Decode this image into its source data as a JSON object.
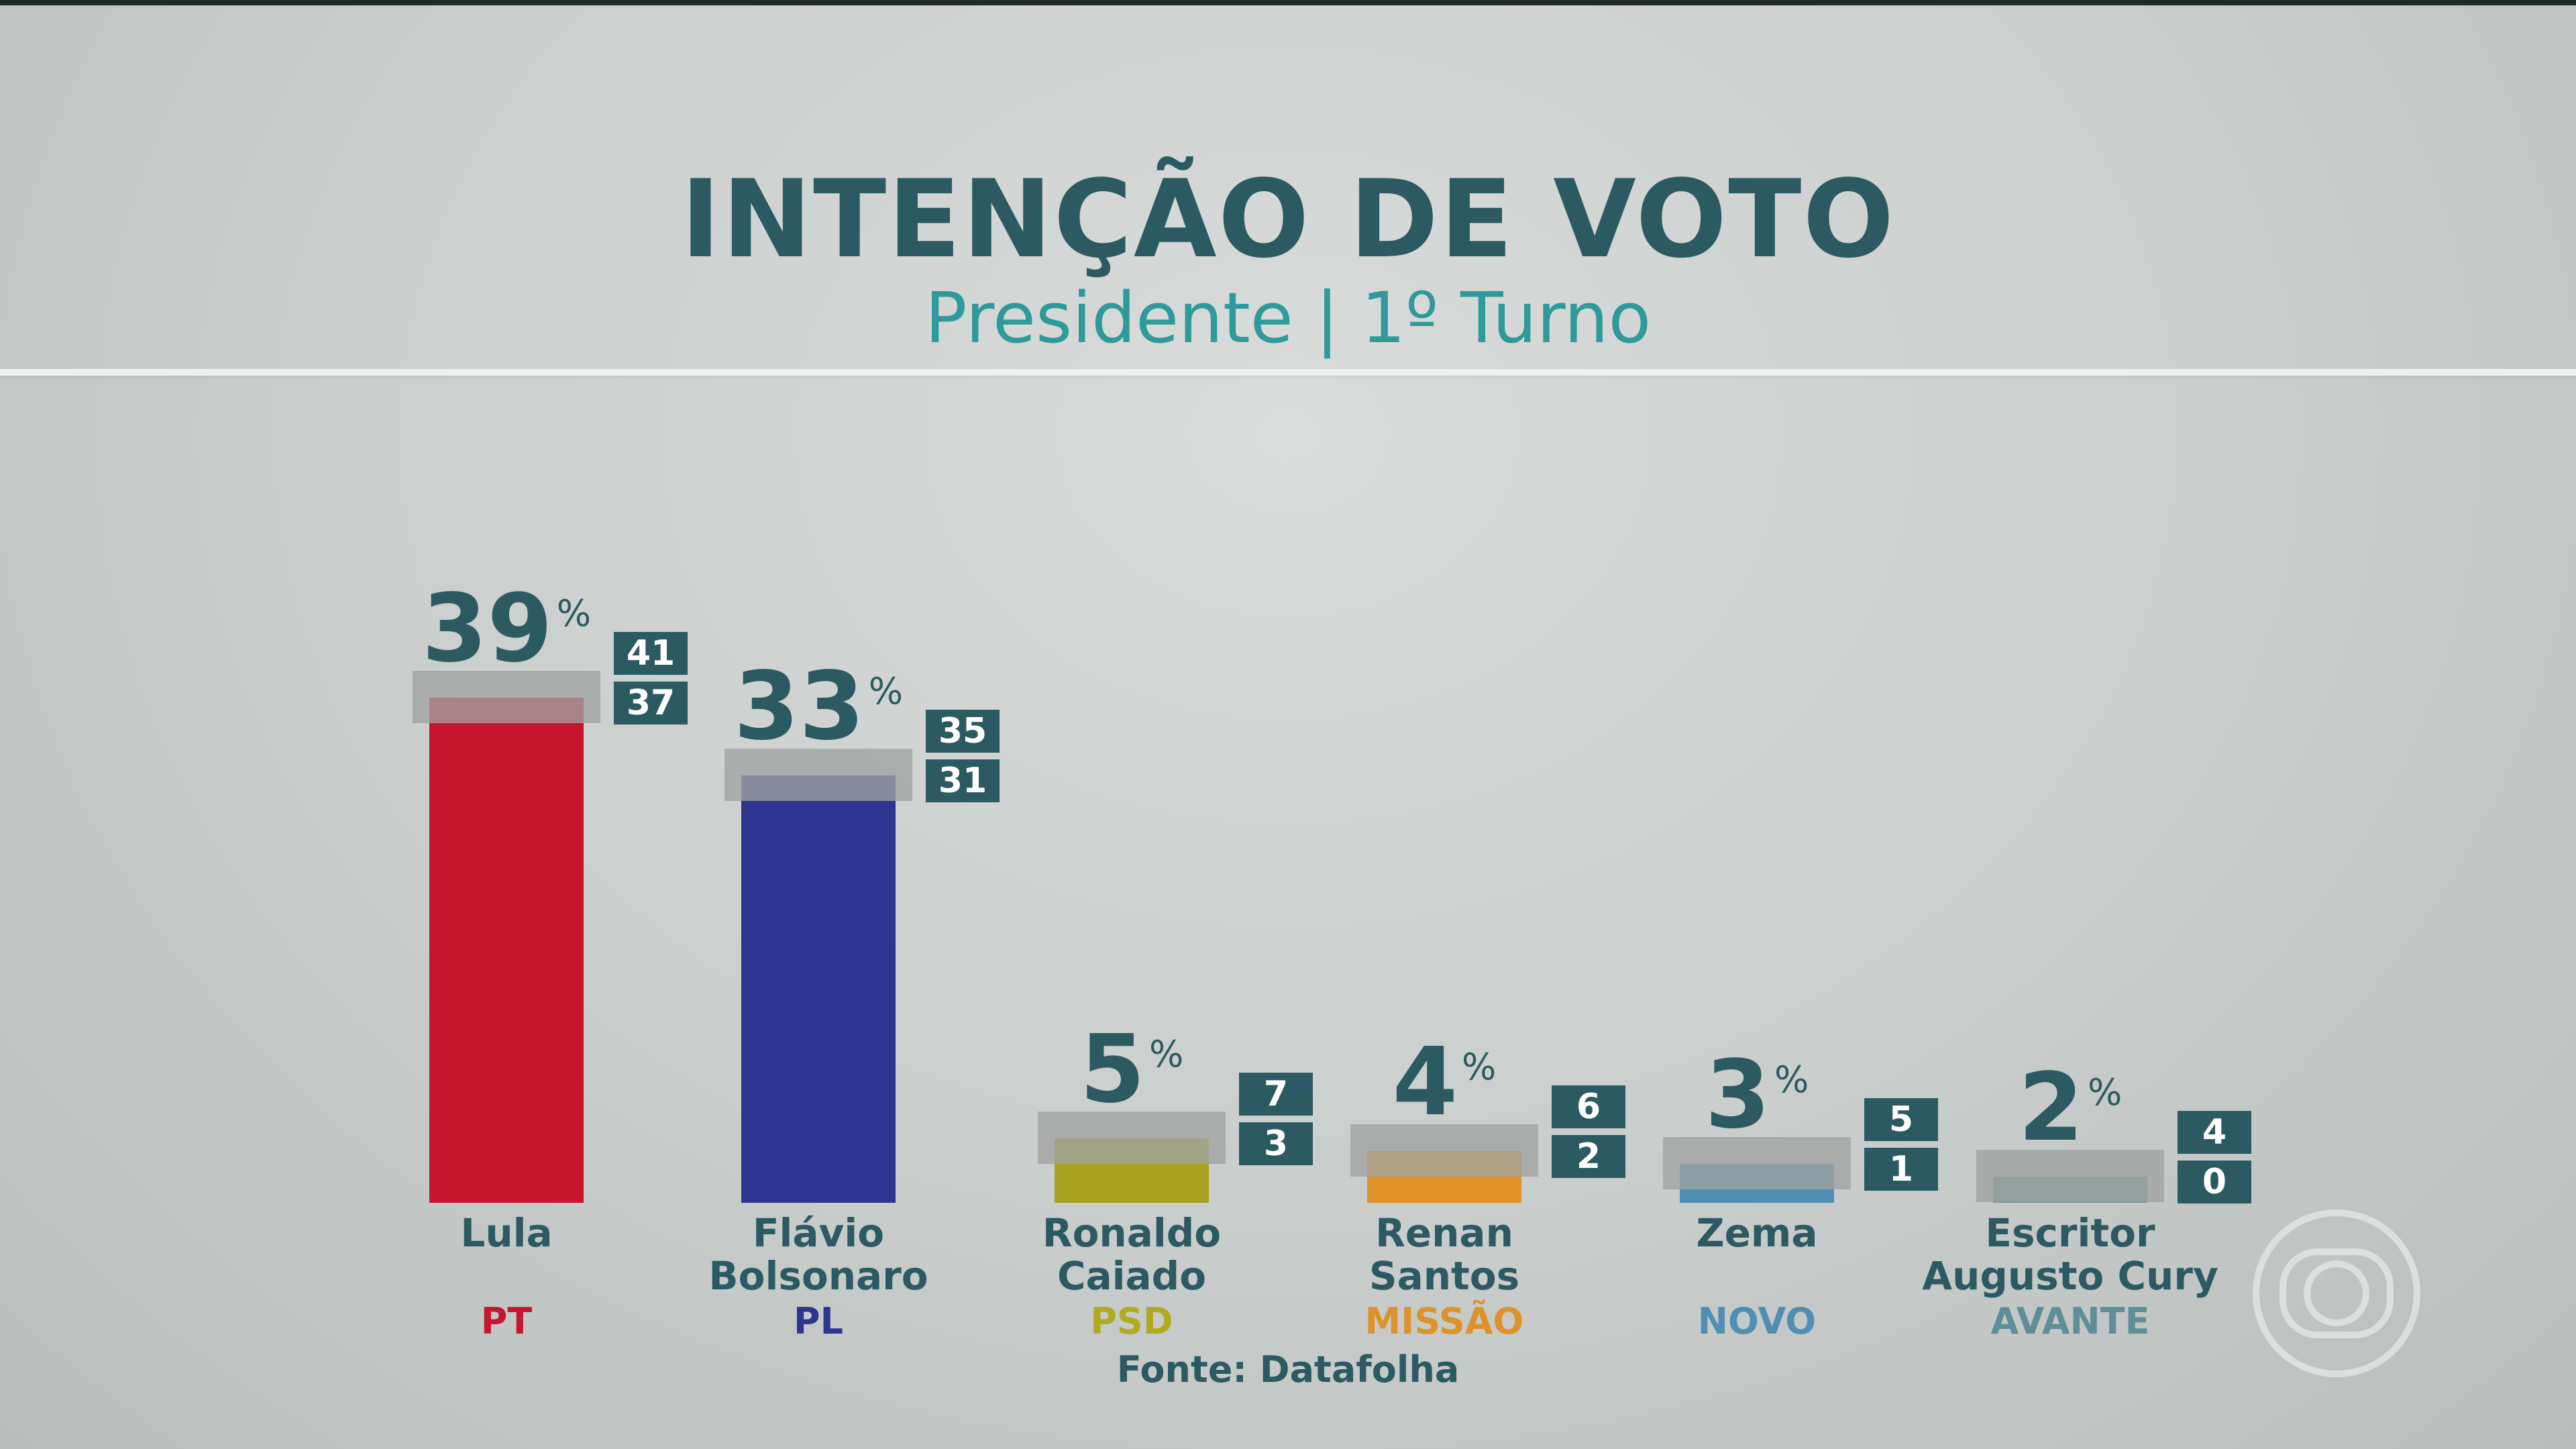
{
  "header": {
    "title": "INTENÇÃO DE VOTO",
    "subtitle": "Presidente | 1º Turno"
  },
  "chart_data": {
    "type": "bar",
    "title": "INTENÇÃO DE VOTO",
    "subtitle": "Presidente | 1º Turno",
    "unit": "%",
    "ylim": [
      0,
      45
    ],
    "categories": [
      "Lula",
      "Flávio Bolsonaro",
      "Ronaldo Caiado",
      "Renan Santos",
      "Zema",
      "Escritor Augusto Cury"
    ],
    "candidates": [
      {
        "name_lines": [
          "Lula"
        ],
        "party": "PT",
        "value": 39,
        "upper": 41,
        "lower": 37,
        "color": "#c5162e",
        "party_color": "#c5162e"
      },
      {
        "name_lines": [
          "Flávio",
          "Bolsonaro"
        ],
        "party": "PL",
        "value": 33,
        "upper": 35,
        "lower": 31,
        "color": "#2e3590",
        "party_color": "#2e3590"
      },
      {
        "name_lines": [
          "Ronaldo",
          "Caiado"
        ],
        "party": "PSD",
        "value": 5,
        "upper": 7,
        "lower": 3,
        "color": "#a8a220",
        "party_color": "#b2aa1e"
      },
      {
        "name_lines": [
          "Renan",
          "Santos"
        ],
        "party": "MISSÃO",
        "value": 4,
        "upper": 6,
        "lower": 2,
        "color": "#e0922a",
        "party_color": "#e0922a"
      },
      {
        "name_lines": [
          "Zema"
        ],
        "party": "NOVO",
        "value": 3,
        "upper": 5,
        "lower": 1,
        "color": "#4e8fb3",
        "party_color": "#4e8fb3"
      },
      {
        "name_lines": [
          "Escritor",
          "Augusto Cury"
        ],
        "party": "AVANTE",
        "value": 2,
        "upper": 4,
        "lower": 0,
        "color": "#6a9598",
        "party_color": "#5e8f99"
      }
    ],
    "grid": false,
    "legend": "none"
  },
  "source": "Fonte: Datafolha",
  "logo": "globo-logo-icon"
}
